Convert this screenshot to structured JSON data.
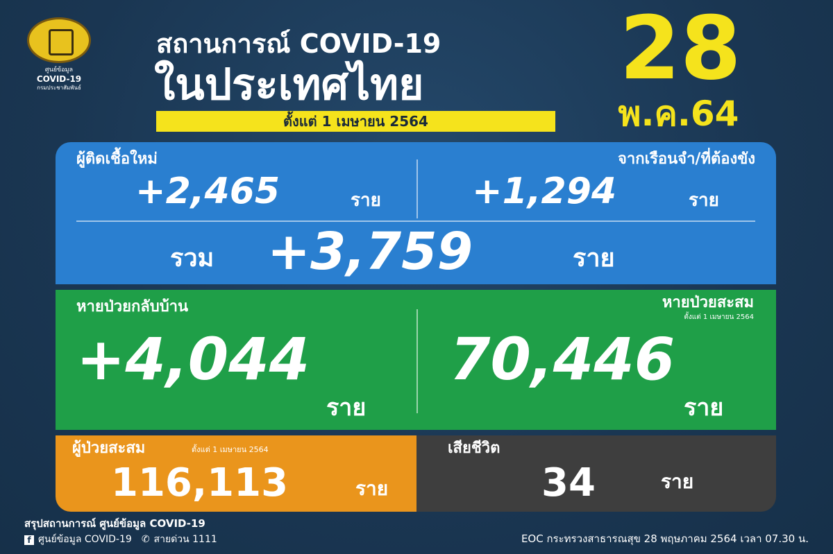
{
  "logo": {
    "line1": "ศูนย์ข้อมูล",
    "line2": "COVID-19",
    "line3": "กรมประชาสัมพันธ์"
  },
  "header": {
    "title_line1": "สถานการณ์ COVID-19",
    "title_line2": "ในประเทศไทย",
    "since": "ตั้งแต่ 1 เมษายน 2564",
    "day": "28",
    "month_year": "พ.ค.64"
  },
  "new_cases": {
    "label": "ผู้ติดเชื้อใหม่",
    "value": "+2,465",
    "unit": "ราย"
  },
  "prison_cases": {
    "label": "จากเรือนจำ/ที่ต้องขัง",
    "value": "+1,294",
    "unit": "ราย"
  },
  "total": {
    "label": "รวม",
    "value": "+3,759",
    "unit": "ราย"
  },
  "recovered": {
    "label": "หายป่วยกลับบ้าน",
    "value": "+4,044",
    "unit": "ราย"
  },
  "recovered_cum": {
    "label": "หายป่วยสะสม",
    "sub": "ตั้งแต่ 1 เมษายน 2564",
    "value": "70,446",
    "unit": "ราย"
  },
  "cumulative": {
    "label": "ผู้ป่วยสะสม",
    "sub": "ตั้งแต่ 1 เมษายน 2564",
    "value": "116,113",
    "unit": "ราย"
  },
  "deaths": {
    "label": "เสียชีวิต",
    "value": "34",
    "unit": "ราย"
  },
  "footer": {
    "summary": "สรุปสถานการณ์ ศูนย์ข้อมูล COVID-19",
    "facebook": "ศูนย์ข้อมูล COVID-19",
    "hotline": "สายด่วน 1111",
    "source": "EOC กระทรวงสาธารณสุข 28 พฤษภาคม 2564 เวลา 07.30 น."
  },
  "colors": {
    "background": "#1a3652",
    "yellow": "#f5e31c",
    "blue": "#2a7fd0",
    "green": "#1f9f48",
    "orange": "#ea951c",
    "gray": "#3e3e3e"
  }
}
